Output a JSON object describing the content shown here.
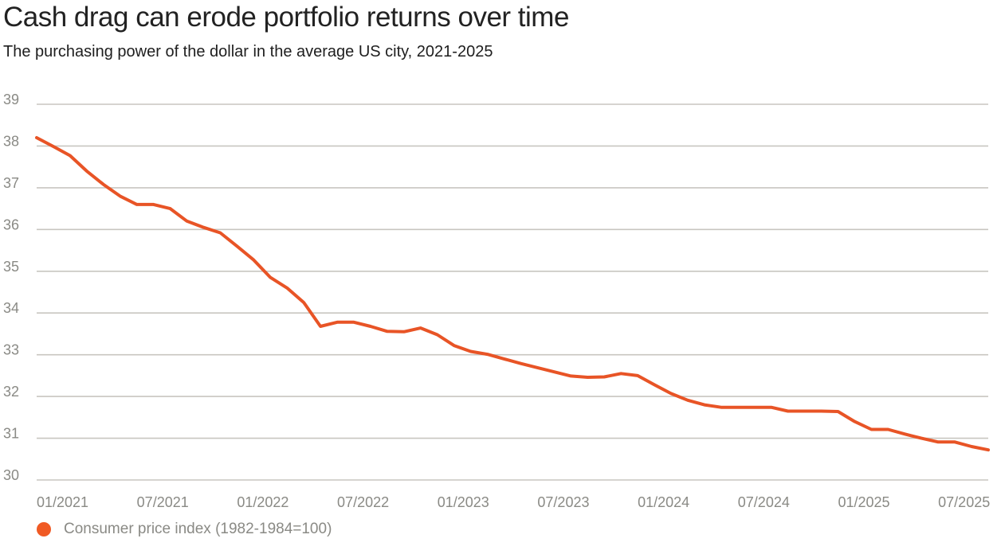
{
  "chart_data": {
    "type": "line",
    "title": "Cash drag can erode portfolio returns over time",
    "subtitle": "The purchasing power of the dollar in the average US city, 2021-2025",
    "xlabel": "",
    "ylabel": "",
    "ylim": [
      30,
      39
    ],
    "yticks": [
      "30",
      "31",
      "32",
      "33",
      "34",
      "35",
      "36",
      "37",
      "38",
      "39"
    ],
    "xticks": [
      {
        "label": "01/2021",
        "month_index": 0
      },
      {
        "label": "07/2021",
        "month_index": 6
      },
      {
        "label": "01/2022",
        "month_index": 12
      },
      {
        "label": "07/2022",
        "month_index": 18
      },
      {
        "label": "01/2023",
        "month_index": 24
      },
      {
        "label": "07/2023",
        "month_index": 30
      },
      {
        "label": "01/2024",
        "month_index": 36
      },
      {
        "label": "07/2024",
        "month_index": 42
      },
      {
        "label": "01/2025",
        "month_index": 48
      },
      {
        "label": "07/2025",
        "month_index": 54
      }
    ],
    "xlim_month_index": [
      0,
      57
    ],
    "grid": true,
    "legend_position": "bottom-left",
    "series": [
      {
        "name": "Consumer price index (1982-1984=100)",
        "color": "#e85426",
        "x_start": "01/2021",
        "x_step": "month",
        "values": [
          38.2,
          37.99,
          37.77,
          37.4,
          37.08,
          36.8,
          36.6,
          36.6,
          36.5,
          36.2,
          36.05,
          35.92,
          35.6,
          35.27,
          34.85,
          34.6,
          34.25,
          33.68,
          33.78,
          33.78,
          33.68,
          33.56,
          33.55,
          33.64,
          33.48,
          33.22,
          33.08,
          33.01,
          32.9,
          32.79,
          32.69,
          32.59,
          32.49,
          32.46,
          32.47,
          32.55,
          32.5,
          32.28,
          32.07,
          31.91,
          31.8,
          31.74,
          31.74,
          31.74,
          31.74,
          31.65,
          31.65,
          31.65,
          31.64,
          31.4,
          31.21,
          31.21,
          31.1,
          31.0,
          30.91,
          30.91,
          30.8,
          30.72
        ]
      }
    ]
  }
}
